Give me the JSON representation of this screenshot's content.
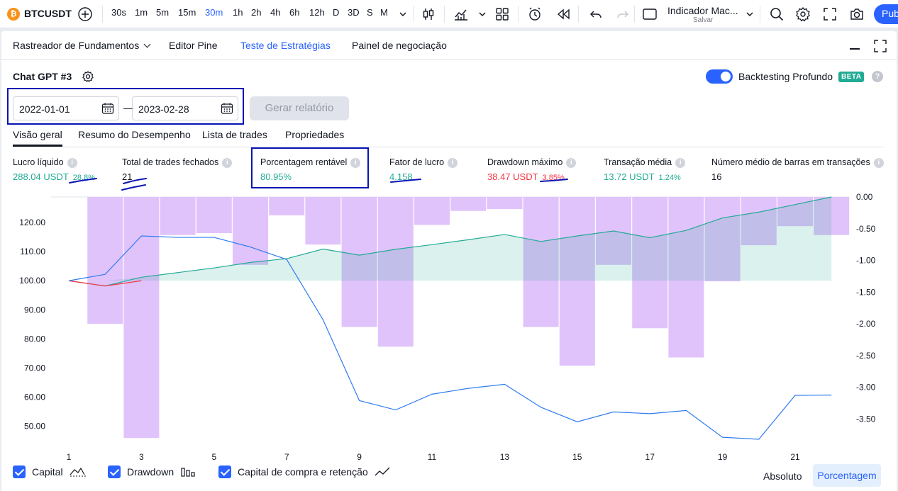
{
  "topbar": {
    "symbol_logo": "₿",
    "symbol": "BTCUSDT",
    "intervals": [
      "30s",
      "1m",
      "5m",
      "15m",
      "30m",
      "1h",
      "2h",
      "4h",
      "6h",
      "12h",
      "D",
      "3D",
      "S",
      "M"
    ],
    "active_interval": "30m",
    "indicator_name": "Indicador Mac...",
    "indicator_save": "Salvar",
    "publish": "Pub",
    "icons": [
      "add-symbol-icon",
      "chevron-down-icon",
      "candles-icon",
      "indicators-icon",
      "layouts-icon",
      "alert-icon",
      "replay-icon",
      "undo-icon",
      "redo-icon",
      "rectangle-icon",
      "search-icon",
      "gear-icon",
      "fullscreen-icon",
      "camera-icon"
    ]
  },
  "panel": {
    "tabs": [
      "Rastreador de Fundamentos",
      "Editor Pine",
      "Teste de Estratégias",
      "Painel de negociação"
    ],
    "active_tab": "Teste de Estratégias"
  },
  "strategy": {
    "title": "Chat GPT #3",
    "deep_backtesting": "Backtesting Profundo",
    "beta": "BETA",
    "help": "?",
    "date_from": "2022-01-01",
    "date_to": "2023-02-28",
    "dash": "—",
    "generate": "Gerar relatório"
  },
  "subtabs": [
    "Visão geral",
    "Resumo do Desempenho",
    "Lista de trades",
    "Propriedades"
  ],
  "metrics": [
    {
      "label": "Lucro líquido",
      "value": "288.04 USDT",
      "pct": "28.8%",
      "color": "#22ab94"
    },
    {
      "label": "Total de trades fechados",
      "value": "21",
      "pct": "",
      "color": "#131722"
    },
    {
      "label": "Porcentagem rentável",
      "value": "80.95%",
      "pct": "",
      "color": "#22ab94"
    },
    {
      "label": "Fator de lucro",
      "value": "4.158",
      "pct": "",
      "color": "#22ab94"
    },
    {
      "label": "Drawdown máximo",
      "value": "38.47 USDT",
      "pct": "3.85%",
      "color": "#f23645"
    },
    {
      "label": "Transação média",
      "value": "13.72 USDT",
      "pct": "1.24%",
      "color": "#22ab94"
    },
    {
      "label": "Número médio de barras em transações",
      "value": "16",
      "pct": "",
      "color": "#131722"
    }
  ],
  "chart_data": {
    "type": "bar",
    "x_ticks": [
      "1",
      "3",
      "5",
      "7",
      "9",
      "11",
      "13",
      "15",
      "17",
      "19",
      "21"
    ],
    "left_axis_ticks": [
      "120.00",
      "110.00",
      "100.00",
      "90.00",
      "80.00",
      "70.00",
      "60.00",
      "50.00"
    ],
    "right_axis_ticks": [
      "0.00",
      "-0.50",
      "-1.00",
      "-1.50",
      "-2.00",
      "-2.50",
      "-3.00",
      "-3.50"
    ],
    "left_ylim": [
      45.5,
      128.8
    ],
    "right_ylim": [
      -3.82,
      0.0
    ],
    "x": [
      1,
      2,
      3,
      4,
      5,
      6,
      7,
      8,
      9,
      10,
      11,
      12,
      13,
      14,
      15,
      16,
      17,
      18,
      19,
      20,
      21,
      22
    ],
    "series": [
      {
        "name": "Drawdown",
        "kind": "bar",
        "axis": "right",
        "color": "#e1c3fb",
        "values": [
          0,
          -2.0,
          -3.8,
          -0.6,
          -0.57,
          -1.07,
          -0.29,
          -0.75,
          -2.05,
          -2.36,
          -0.44,
          -0.22,
          -0.19,
          -2.05,
          -2.66,
          -1.07,
          -2.07,
          -2.53,
          -1.33,
          -0.76,
          -0.46,
          -0.6
        ]
      },
      {
        "name": "Capital",
        "kind": "line",
        "axis": "left",
        "color": "#22ab94",
        "values": [
          100.0,
          98.2,
          101.2,
          102.8,
          104.4,
          106.3,
          107.6,
          110.9,
          108.8,
          110.8,
          112.4,
          114.1,
          115.9,
          113.5,
          115.4,
          117.1,
          114.8,
          117.3,
          121.6,
          123.6,
          126.2,
          128.8
        ]
      },
      {
        "name": "Capital de compra e retenção",
        "kind": "line",
        "axis": "left",
        "color": "#2f7cf0",
        "values": [
          100.0,
          102.2,
          115.4,
          114.9,
          114.9,
          111.6,
          107.3,
          86.6,
          58.8,
          55.6,
          61.0,
          63.0,
          64.4,
          56.5,
          51.5,
          54.9,
          54.3,
          55.4,
          46.2,
          45.5,
          60.6,
          60.7
        ]
      }
    ]
  },
  "legend": {
    "items": [
      "Capital",
      "Drawdown",
      "Capital de compra e retenção"
    ],
    "absolute": "Absoluto",
    "percentage": "Porcentagem"
  }
}
